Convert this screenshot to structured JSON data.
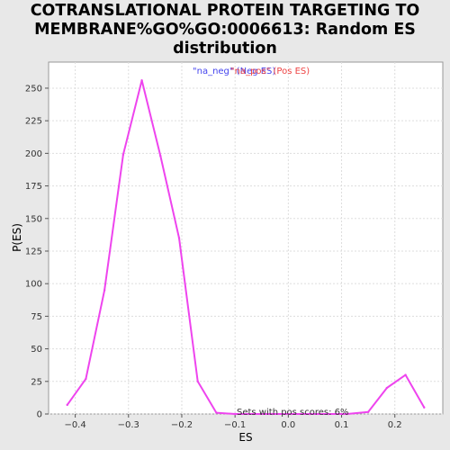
{
  "chart_data": {
    "type": "line",
    "title_lines": [
      "COTRANSLATIONAL PROTEIN TARGETING TO",
      "MEMBRANE%GO%GO:0006613: Random ES",
      "distribution"
    ],
    "xlabel": "ES",
    "ylabel": "P(ES)",
    "xlim": [
      -0.45,
      0.29
    ],
    "ylim": [
      0,
      270
    ],
    "x_ticks": [
      -0.4,
      -0.3,
      -0.2,
      -0.1,
      0.0,
      0.1,
      0.2
    ],
    "x_tick_labels": [
      "−0.4",
      "−0.3",
      "−0.2",
      "−0.1",
      "0.0",
      "0.1",
      "0.2"
    ],
    "y_ticks": [
      0,
      25,
      50,
      75,
      100,
      125,
      150,
      175,
      200,
      225,
      250
    ],
    "y_tick_labels": [
      "0",
      "25",
      "50",
      "75",
      "100",
      "125",
      "150",
      "175",
      "200",
      "225",
      "250"
    ],
    "grid": true,
    "legend": {
      "placement": "top-center",
      "entries": [
        {
          "label": "\"na_neg\" (Neg ES)",
          "color": "#4444ee"
        },
        {
          "label": "\"na_pos\" (Pos ES)",
          "color": "#ee4444"
        }
      ]
    },
    "annotation": "Sets with pos scores: 6%",
    "series": [
      {
        "color": "#ee44ee",
        "x": [
          -0.415,
          -0.38,
          -0.345,
          -0.31,
          -0.275,
          -0.24,
          -0.205,
          -0.17,
          -0.135,
          -0.1,
          -0.065,
          -0.03,
          0.005,
          0.04,
          0.075,
          0.11,
          0.15,
          0.185,
          0.22,
          0.255
        ],
        "y": [
          7,
          27,
          95,
          199,
          256,
          198,
          135,
          25,
          1,
          0,
          0,
          0,
          0,
          0,
          0,
          0,
          1.5,
          20,
          30,
          5
        ]
      }
    ]
  }
}
